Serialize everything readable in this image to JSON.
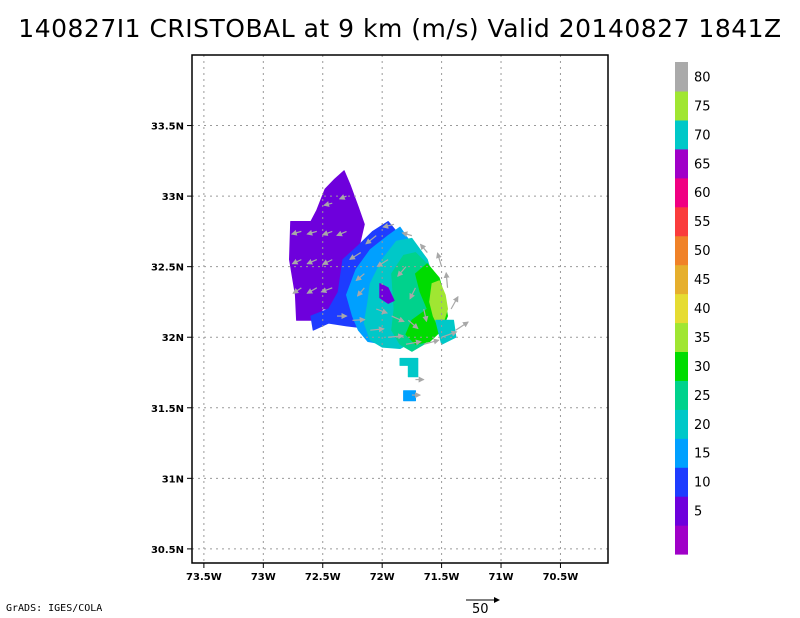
{
  "title": "140827I1 CRISTOBAL at 9 km (m/s) Valid 20140827 1841Z",
  "credit": "GrADS: IGES/COLA",
  "reference_vector_label": "50",
  "chart_data": {
    "type": "heatmap",
    "title": "140827I1 CRISTOBAL at 9 km (m/s) Valid 20140827 1841Z",
    "xlabel": "",
    "ylabel": "",
    "xlim": [
      -73.6,
      -70.1
    ],
    "ylim": [
      30.4,
      34.0
    ],
    "grid": true,
    "x_ticks": [
      {
        "value": -73.5,
        "label": "73.5W"
      },
      {
        "value": -73.0,
        "label": "73W"
      },
      {
        "value": -72.5,
        "label": "72.5W"
      },
      {
        "value": -72.0,
        "label": "72W"
      },
      {
        "value": -71.5,
        "label": "71.5W"
      },
      {
        "value": -71.0,
        "label": "71W"
      },
      {
        "value": -70.5,
        "label": "70.5W"
      }
    ],
    "y_ticks": [
      {
        "value": 30.5,
        "label": "30.5N"
      },
      {
        "value": 31.0,
        "label": "31N"
      },
      {
        "value": 31.5,
        "label": "31.5N"
      },
      {
        "value": 32.0,
        "label": "32N"
      },
      {
        "value": 32.5,
        "label": "32.5N"
      },
      {
        "value": 33.0,
        "label": "33N"
      },
      {
        "value": 33.5,
        "label": "33.5N"
      }
    ],
    "colorbar": {
      "levels": [
        {
          "label": "",
          "color": "#a000c8"
        },
        {
          "label": "5",
          "color": "#6e00dc"
        },
        {
          "label": "10",
          "color": "#1e3cff"
        },
        {
          "label": "15",
          "color": "#00a0ff"
        },
        {
          "label": "20",
          "color": "#00c8c8"
        },
        {
          "label": "25",
          "color": "#00d28c"
        },
        {
          "label": "30",
          "color": "#00dc00"
        },
        {
          "label": "35",
          "color": "#a0e632"
        },
        {
          "label": "40",
          "color": "#e6dc32"
        },
        {
          "label": "45",
          "color": "#e6af2d"
        },
        {
          "label": "50",
          "color": "#f08228"
        },
        {
          "label": "55",
          "color": "#fa3c3c"
        },
        {
          "label": "60",
          "color": "#f00082"
        },
        {
          "label": "65",
          "color": "#a000c8"
        },
        {
          "label": "70",
          "color": "#00c8c8"
        },
        {
          "label": "75",
          "color": "#a0e632"
        },
        {
          "label": "80",
          "color": "#aaaaaa"
        }
      ]
    },
    "regions": [
      {
        "level_index": 1,
        "points": [
          [
            -72.77,
            32.82
          ],
          [
            -72.6,
            32.82
          ],
          [
            -72.55,
            32.9
          ],
          [
            -72.48,
            33.05
          ],
          [
            -72.4,
            33.12
          ],
          [
            -72.32,
            33.18
          ],
          [
            -72.27,
            33.08
          ],
          [
            -72.2,
            32.92
          ],
          [
            -72.15,
            32.8
          ],
          [
            -72.2,
            32.62
          ],
          [
            -72.3,
            32.5
          ],
          [
            -72.35,
            32.32
          ],
          [
            -72.38,
            32.2
          ],
          [
            -72.5,
            32.2
          ],
          [
            -72.55,
            32.12
          ],
          [
            -72.72,
            32.12
          ],
          [
            -72.73,
            32.3
          ],
          [
            -72.78,
            32.55
          ]
        ]
      },
      {
        "level_index": 2,
        "points": [
          [
            -72.33,
            32.55
          ],
          [
            -72.2,
            32.65
          ],
          [
            -72.08,
            32.75
          ],
          [
            -71.95,
            32.82
          ],
          [
            -71.88,
            32.75
          ],
          [
            -71.9,
            32.55
          ],
          [
            -71.95,
            32.35
          ],
          [
            -71.92,
            32.2
          ],
          [
            -71.98,
            32.1
          ],
          [
            -72.1,
            32.06
          ],
          [
            -72.3,
            32.08
          ],
          [
            -72.45,
            32.1
          ],
          [
            -72.58,
            32.05
          ],
          [
            -72.6,
            32.15
          ],
          [
            -72.45,
            32.2
          ],
          [
            -72.37,
            32.32
          ]
        ]
      },
      {
        "level_index": 3,
        "points": [
          [
            -72.22,
            32.48
          ],
          [
            -72.1,
            32.62
          ],
          [
            -71.95,
            32.72
          ],
          [
            -71.85,
            32.78
          ],
          [
            -71.72,
            32.62
          ],
          [
            -71.65,
            32.45
          ],
          [
            -71.6,
            32.3
          ],
          [
            -71.65,
            32.15
          ],
          [
            -71.75,
            32.05
          ],
          [
            -71.85,
            31.97
          ],
          [
            -71.98,
            31.95
          ],
          [
            -72.12,
            31.97
          ],
          [
            -72.2,
            32.05
          ],
          [
            -72.25,
            32.15
          ],
          [
            -72.3,
            32.3
          ]
        ]
      },
      {
        "level_index": 4,
        "points": [
          [
            -72.1,
            32.38
          ],
          [
            -72.0,
            32.55
          ],
          [
            -71.88,
            32.68
          ],
          [
            -71.75,
            32.7
          ],
          [
            -71.62,
            32.55
          ],
          [
            -71.55,
            32.35
          ],
          [
            -71.58,
            32.15
          ],
          [
            -71.65,
            32.05
          ],
          [
            -71.72,
            31.98
          ],
          [
            -71.85,
            31.92
          ],
          [
            -72.0,
            31.93
          ],
          [
            -72.1,
            31.98
          ],
          [
            -72.15,
            32.1
          ],
          [
            -72.12,
            32.25
          ]
        ]
      },
      {
        "level_index": 5,
        "points": [
          [
            -71.92,
            32.45
          ],
          [
            -71.82,
            32.58
          ],
          [
            -71.72,
            32.6
          ],
          [
            -71.6,
            32.5
          ],
          [
            -71.52,
            32.35
          ],
          [
            -71.5,
            32.2
          ],
          [
            -71.55,
            32.05
          ],
          [
            -71.65,
            31.95
          ],
          [
            -71.75,
            31.9
          ],
          [
            -71.85,
            31.95
          ],
          [
            -71.92,
            32.05
          ],
          [
            -71.9,
            32.2
          ]
        ]
      },
      {
        "level_index": 6,
        "points": [
          [
            -71.72,
            32.45
          ],
          [
            -71.62,
            32.52
          ],
          [
            -71.52,
            32.42
          ],
          [
            -71.48,
            32.3
          ],
          [
            -71.45,
            32.15
          ],
          [
            -71.5,
            32.05
          ],
          [
            -71.6,
            31.97
          ],
          [
            -71.72,
            31.95
          ],
          [
            -71.8,
            32.02
          ],
          [
            -71.75,
            32.12
          ],
          [
            -71.62,
            32.2
          ],
          [
            -71.68,
            32.32
          ]
        ]
      },
      {
        "level_index": 7,
        "points": [
          [
            -71.58,
            32.38
          ],
          [
            -71.52,
            32.4
          ],
          [
            -71.47,
            32.3
          ],
          [
            -71.45,
            32.2
          ],
          [
            -71.48,
            32.12
          ],
          [
            -71.53,
            32.08
          ],
          [
            -71.57,
            32.15
          ],
          [
            -71.6,
            32.25
          ]
        ]
      },
      {
        "level_index": 1,
        "points": [
          [
            -72.02,
            32.38
          ],
          [
            -71.95,
            32.35
          ],
          [
            -71.9,
            32.26
          ],
          [
            -71.95,
            32.24
          ],
          [
            -72.02,
            32.28
          ]
        ]
      },
      {
        "level_index": 4,
        "points": [
          [
            -71.85,
            31.85
          ],
          [
            -71.7,
            31.85
          ],
          [
            -71.7,
            31.72
          ],
          [
            -71.78,
            31.72
          ],
          [
            -71.78,
            31.8
          ],
          [
            -71.85,
            31.8
          ]
        ]
      },
      {
        "level_index": 3,
        "points": [
          [
            -71.82,
            31.62
          ],
          [
            -71.72,
            31.62
          ],
          [
            -71.72,
            31.55
          ],
          [
            -71.82,
            31.55
          ]
        ]
      },
      {
        "level_index": 4,
        "points": [
          [
            -71.55,
            32.12
          ],
          [
            -71.4,
            32.12
          ],
          [
            -71.38,
            32.0
          ],
          [
            -71.5,
            31.95
          ]
        ]
      }
    ],
    "vectors": [
      {
        "lon": -72.68,
        "lat": 32.75,
        "u": -14,
        "v": -4
      },
      {
        "lon": -72.55,
        "lat": 32.75,
        "u": -14,
        "v": -4
      },
      {
        "lon": -72.42,
        "lat": 32.75,
        "u": -14,
        "v": -5
      },
      {
        "lon": -72.3,
        "lat": 32.75,
        "u": -14,
        "v": -6
      },
      {
        "lon": -72.42,
        "lat": 32.95,
        "u": -12,
        "v": -3
      },
      {
        "lon": -72.3,
        "lat": 33.0,
        "u": -10,
        "v": -4
      },
      {
        "lon": -72.68,
        "lat": 32.55,
        "u": -13,
        "v": -6
      },
      {
        "lon": -72.55,
        "lat": 32.55,
        "u": -14,
        "v": -6
      },
      {
        "lon": -72.42,
        "lat": 32.55,
        "u": -14,
        "v": -7
      },
      {
        "lon": -72.68,
        "lat": 32.35,
        "u": -12,
        "v": -8
      },
      {
        "lon": -72.55,
        "lat": 32.35,
        "u": -14,
        "v": -8
      },
      {
        "lon": -72.42,
        "lat": 32.35,
        "u": -16,
        "v": -6
      },
      {
        "lon": -72.18,
        "lat": 32.6,
        "u": -16,
        "v": -10
      },
      {
        "lon": -72.05,
        "lat": 32.72,
        "u": -15,
        "v": -12
      },
      {
        "lon": -71.9,
        "lat": 32.8,
        "u": -16,
        "v": -4
      },
      {
        "lon": -71.75,
        "lat": 32.72,
        "u": -14,
        "v": 4
      },
      {
        "lon": -71.62,
        "lat": 32.6,
        "u": -10,
        "v": 12
      },
      {
        "lon": -71.5,
        "lat": 32.5,
        "u": -6,
        "v": 20
      },
      {
        "lon": -71.45,
        "lat": 32.35,
        "u": -2,
        "v": 22
      },
      {
        "lon": -71.42,
        "lat": 32.2,
        "u": 10,
        "v": 18
      },
      {
        "lon": -71.38,
        "lat": 32.05,
        "u": 18,
        "v": 12
      },
      {
        "lon": -71.5,
        "lat": 32.0,
        "u": 22,
        "v": 8
      },
      {
        "lon": -71.65,
        "lat": 31.95,
        "u": 22,
        "v": 6
      },
      {
        "lon": -71.8,
        "lat": 31.95,
        "u": 22,
        "v": 4
      },
      {
        "lon": -71.95,
        "lat": 32.0,
        "u": 22,
        "v": 2
      },
      {
        "lon": -72.1,
        "lat": 32.05,
        "u": 20,
        "v": 2
      },
      {
        "lon": -72.25,
        "lat": 32.12,
        "u": 18,
        "v": 1
      },
      {
        "lon": -72.38,
        "lat": 32.15,
        "u": 14,
        "v": 0
      },
      {
        "lon": -72.15,
        "lat": 32.35,
        "u": -10,
        "v": -12
      },
      {
        "lon": -72.15,
        "lat": 32.45,
        "u": -12,
        "v": -10
      },
      {
        "lon": -71.95,
        "lat": 32.55,
        "u": -16,
        "v": -10
      },
      {
        "lon": -71.8,
        "lat": 32.5,
        "u": -12,
        "v": -14
      },
      {
        "lon": -71.72,
        "lat": 32.35,
        "u": -8,
        "v": -16
      },
      {
        "lon": -71.65,
        "lat": 32.2,
        "u": 4,
        "v": -18
      },
      {
        "lon": -71.78,
        "lat": 32.12,
        "u": 14,
        "v": -12
      },
      {
        "lon": -71.92,
        "lat": 32.15,
        "u": 18,
        "v": -8
      },
      {
        "lon": -72.05,
        "lat": 32.2,
        "u": 16,
        "v": -6
      },
      {
        "lon": -71.72,
        "lat": 31.7,
        "u": 12,
        "v": 0
      },
      {
        "lon": -71.75,
        "lat": 31.59,
        "u": 12,
        "v": 0
      }
    ]
  }
}
